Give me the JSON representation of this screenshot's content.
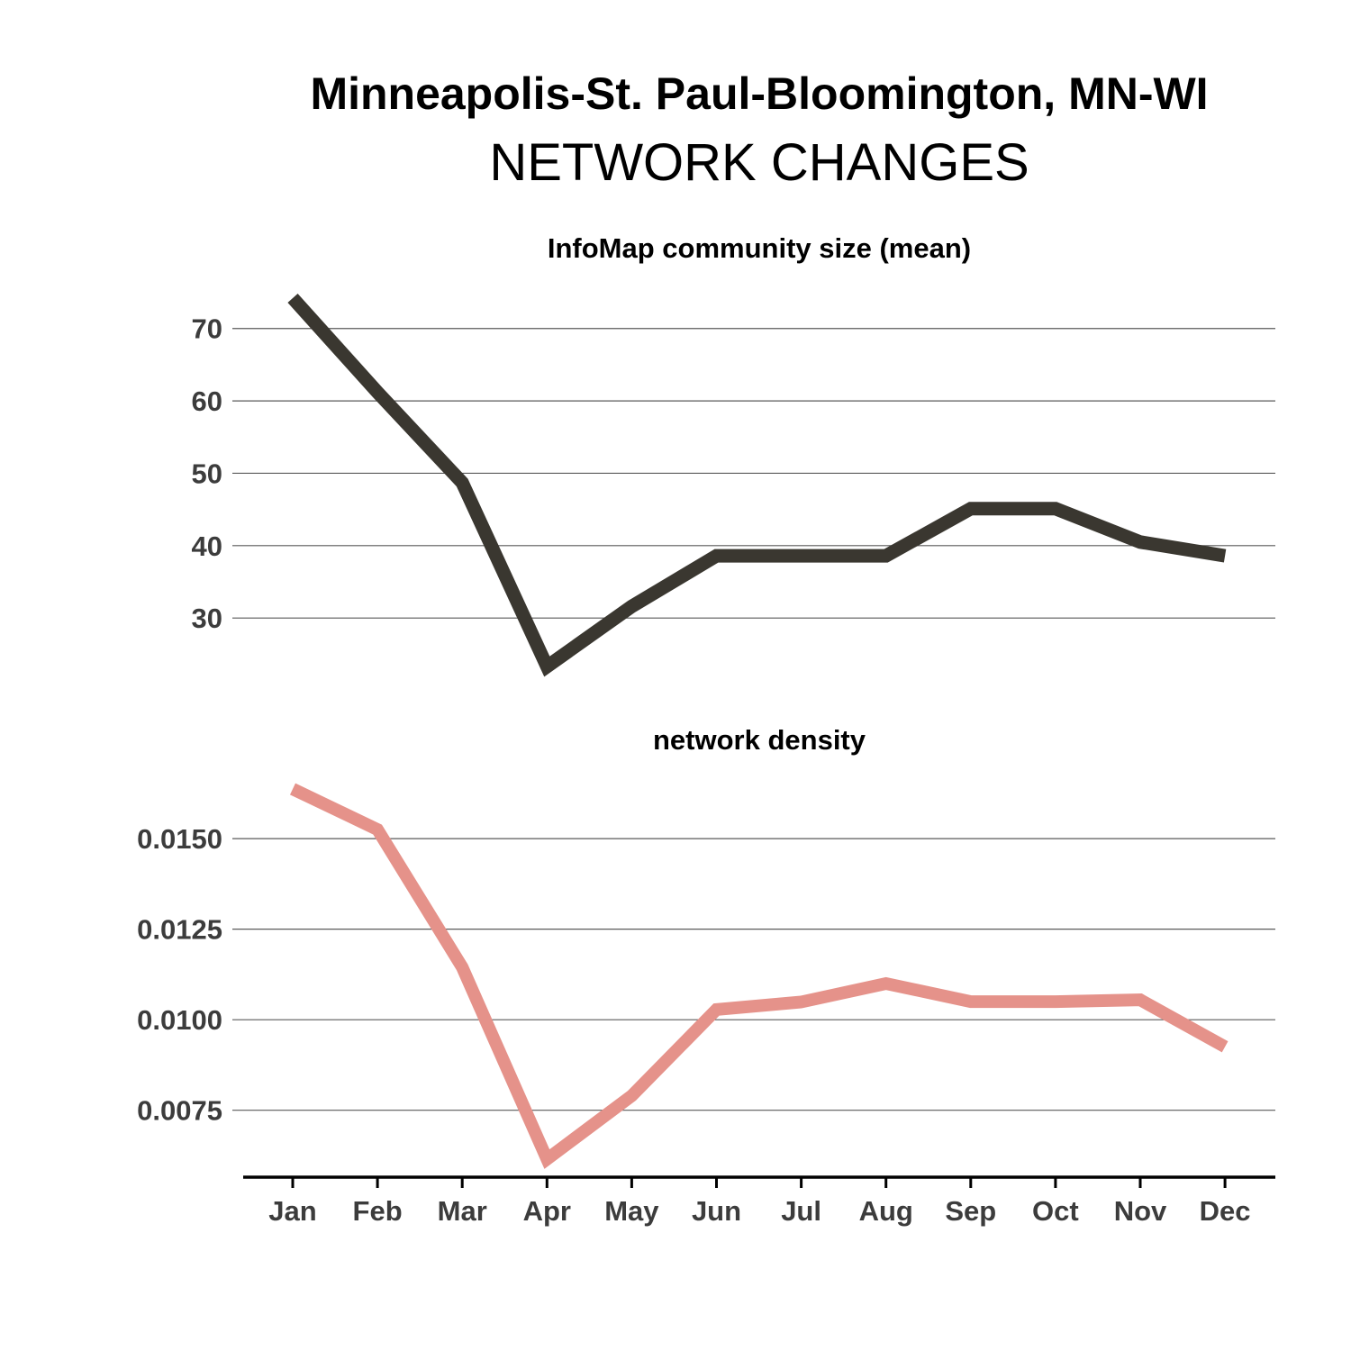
{
  "title": "Minneapolis-St. Paul-Bloomington, MN-WI",
  "subtitle": "NETWORK CHANGES",
  "chart_data": [
    {
      "type": "line",
      "title": "InfoMap community size (mean)",
      "categories": [
        "Jan",
        "Feb",
        "Mar",
        "Apr",
        "May",
        "Jun",
        "Jul",
        "Aug",
        "Sep",
        "Oct",
        "Nov",
        "Dec"
      ],
      "series": [
        {
          "values": [
            74.2,
            61.2,
            48.7,
            23.3,
            31.6,
            38.6,
            38.6,
            38.6,
            45.1,
            45.1,
            40.5,
            38.6
          ],
          "color": "#3a3730"
        }
      ],
      "yticks": [
        30,
        40,
        50,
        60,
        70
      ],
      "ylim": [
        23.3,
        74.2
      ],
      "grid": true,
      "legend": false
    },
    {
      "type": "line",
      "title": "network density",
      "categories": [
        "Jan",
        "Feb",
        "Mar",
        "Apr",
        "May",
        "Jun",
        "Jul",
        "Aug",
        "Sep",
        "Oct",
        "Nov",
        "Dec"
      ],
      "series": [
        {
          "values": [
            0.01637,
            0.01525,
            0.01145,
            0.00615,
            0.0079,
            0.01028,
            0.01049,
            0.011,
            0.0105,
            0.0105,
            0.01055,
            0.00925
          ],
          "color": "#e5928a"
        }
      ],
      "yticks": [
        "0.0075",
        "0.0100",
        "0.0125",
        "0.0150"
      ],
      "ylim": [
        0.00615,
        0.01637
      ],
      "grid": true,
      "legend": false
    }
  ]
}
